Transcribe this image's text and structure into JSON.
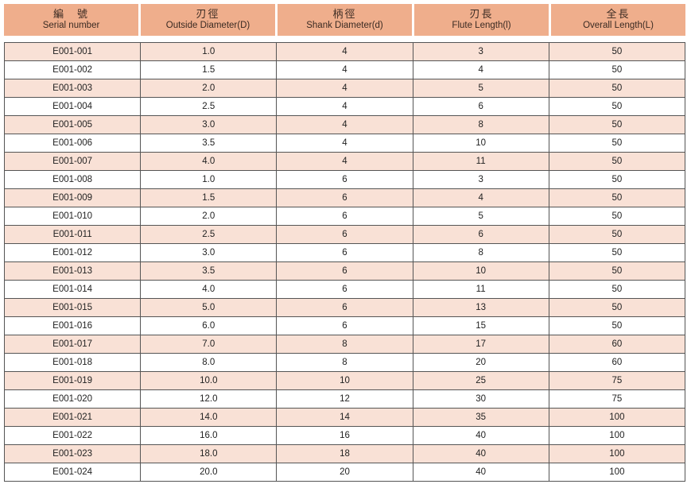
{
  "columns": [
    {
      "zh": "編　號",
      "en": "Serial number"
    },
    {
      "zh": "刃徑",
      "en": "Outside Diameter(D)"
    },
    {
      "zh": "柄徑",
      "en": "Shank Diameter(d)"
    },
    {
      "zh": "刃長",
      "en": "Flute  Length(l)"
    },
    {
      "zh": "全長",
      "en": "Overall Length(L)"
    }
  ],
  "rows": [
    [
      "E001-001",
      "1.0",
      "4",
      "3",
      "50"
    ],
    [
      "E001-002",
      "1.5",
      "4",
      "4",
      "50"
    ],
    [
      "E001-003",
      "2.0",
      "4",
      "5",
      "50"
    ],
    [
      "E001-004",
      "2.5",
      "4",
      "6",
      "50"
    ],
    [
      "E001-005",
      "3.0",
      "4",
      "8",
      "50"
    ],
    [
      "E001-006",
      "3.5",
      "4",
      "10",
      "50"
    ],
    [
      "E001-007",
      "4.0",
      "4",
      "11",
      "50"
    ],
    [
      "E001-008",
      "1.0",
      "6",
      "3",
      "50"
    ],
    [
      "E001-009",
      "1.5",
      "6",
      "4",
      "50"
    ],
    [
      "E001-010",
      "2.0",
      "6",
      "5",
      "50"
    ],
    [
      "E001-011",
      "2.5",
      "6",
      "6",
      "50"
    ],
    [
      "E001-012",
      "3.0",
      "6",
      "8",
      "50"
    ],
    [
      "E001-013",
      "3.5",
      "6",
      "10",
      "50"
    ],
    [
      "E001-014",
      "4.0",
      "6",
      "11",
      "50"
    ],
    [
      "E001-015",
      "5.0",
      "6",
      "13",
      "50"
    ],
    [
      "E001-016",
      "6.0",
      "6",
      "15",
      "50"
    ],
    [
      "E001-017",
      "7.0",
      "8",
      "17",
      "60"
    ],
    [
      "E001-018",
      "8.0",
      "8",
      "20",
      "60"
    ],
    [
      "E001-019",
      "10.0",
      "10",
      "25",
      "75"
    ],
    [
      "E001-020",
      "12.0",
      "12",
      "30",
      "75"
    ],
    [
      "E001-021",
      "14.0",
      "14",
      "35",
      "100"
    ],
    [
      "E001-022",
      "16.0",
      "16",
      "40",
      "100"
    ],
    [
      "E001-023",
      "18.0",
      "18",
      "40",
      "100"
    ],
    [
      "E001-024",
      "20.0",
      "20",
      "40",
      "100"
    ]
  ],
  "colors": {
    "header": "#efae8c",
    "alt_row": "#f9e1d6",
    "border": "#555555"
  }
}
